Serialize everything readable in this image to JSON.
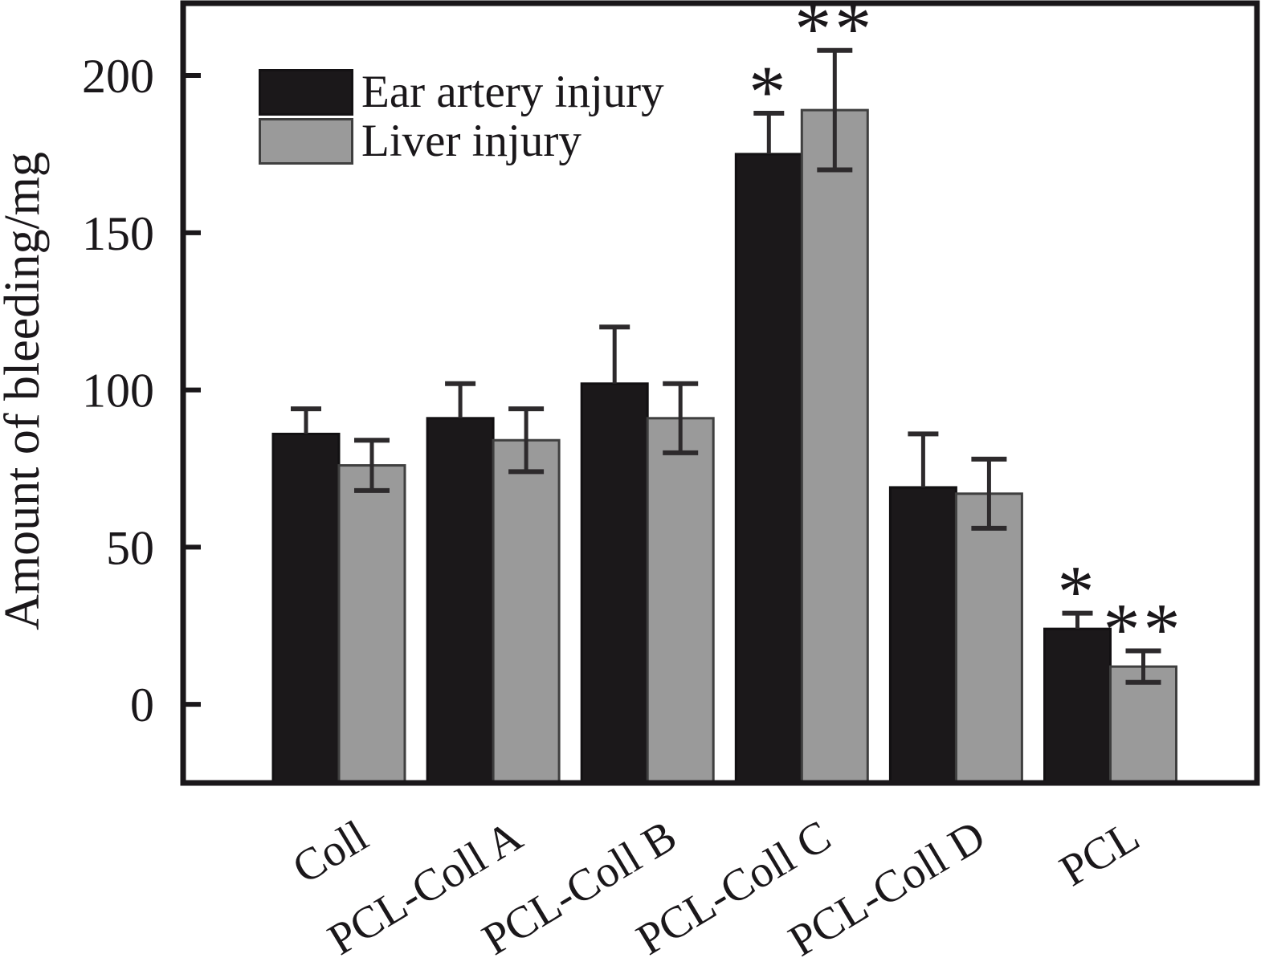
{
  "figure": {
    "background": "#ffffff",
    "axis_color": "#1a171a"
  },
  "legend": {
    "position": "top-left-inside",
    "items": [
      {
        "label": "Ear artery injury",
        "color": "#1b181a"
      },
      {
        "label": "Liver injury",
        "color": "#9a9a9a"
      }
    ]
  },
  "chart_data": {
    "type": "bar",
    "title": "",
    "xlabel": "",
    "ylabel": "Amount of bleeding/mg",
    "categories": [
      "Coll",
      "PCL-Coll A",
      "PCL-Coll B",
      "PCL-Coll C",
      "PCL-Coll D",
      "PCL"
    ],
    "series": [
      {
        "name": "Ear artery injury",
        "color": "#1b181a",
        "edge_color": "#121012",
        "values": [
          86,
          91,
          102,
          175,
          69,
          24
        ],
        "error_up": [
          8,
          11,
          18,
          13,
          17,
          5
        ],
        "error_style": "upper-whisker-only",
        "significance": [
          "",
          "",
          "",
          "*",
          "",
          "*"
        ]
      },
      {
        "name": "Liver injury",
        "color": "#9a9a9a",
        "edge_color": "#3f3f3f",
        "values": [
          76,
          84,
          91,
          189,
          67,
          12
        ],
        "error_up": [
          8,
          10,
          11,
          19,
          11,
          5
        ],
        "error_down": [
          8,
          10,
          11,
          19,
          11,
          5
        ],
        "error_style": "full-whisker",
        "significance": [
          "",
          "",
          "",
          "**",
          "",
          "**"
        ]
      }
    ],
    "yticks": [
      0,
      50,
      100,
      150,
      200
    ],
    "ylim": [
      -25,
      223
    ],
    "x_tick_label_rotation_deg": -31,
    "grid": false,
    "legend_position": "upper left"
  }
}
